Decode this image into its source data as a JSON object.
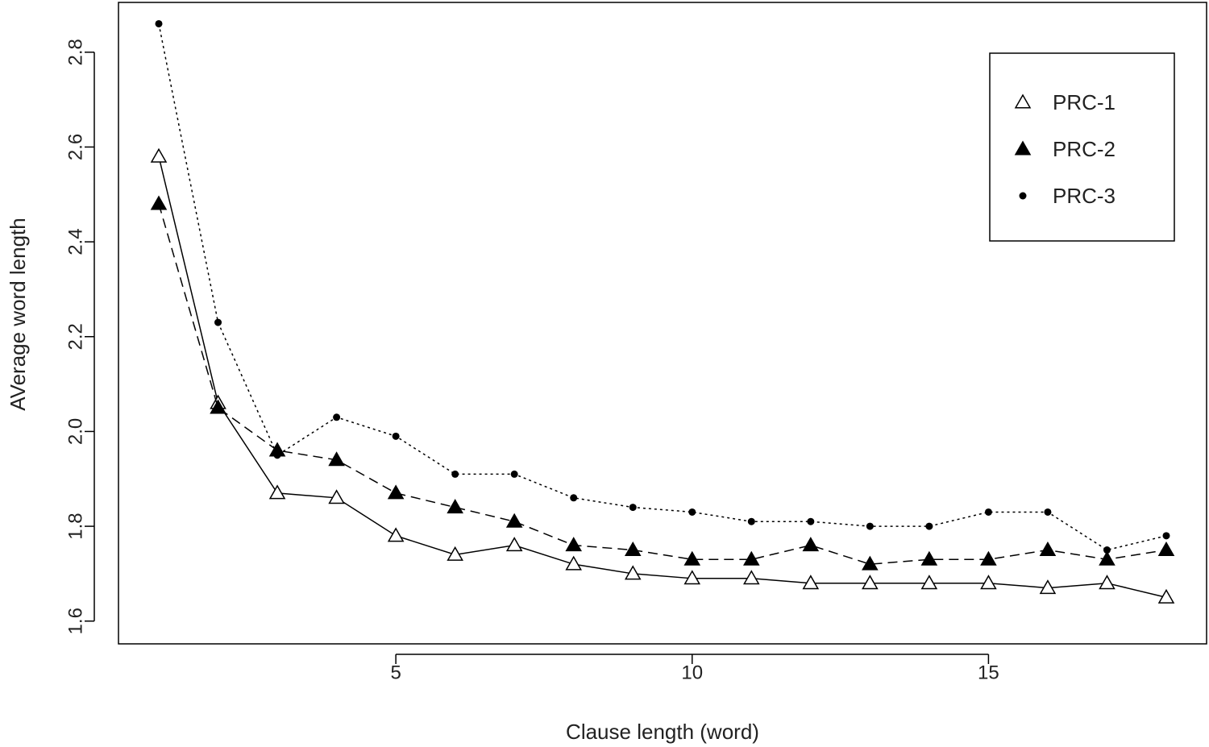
{
  "chart_data": {
    "type": "line",
    "x_label": "Clause length (word)",
    "y_label": "AVerage word length",
    "x": [
      1,
      2,
      3,
      4,
      5,
      6,
      7,
      8,
      9,
      10,
      11,
      12,
      13,
      14,
      15,
      16,
      17,
      18
    ],
    "series": [
      {
        "name": "PRC-1",
        "color": "#000000",
        "marker": "open-triangle",
        "dash": "solid",
        "values": [
          2.58,
          2.06,
          1.87,
          1.86,
          1.78,
          1.74,
          1.76,
          1.72,
          1.7,
          1.69,
          1.69,
          1.68,
          1.68,
          1.68,
          1.68,
          1.67,
          1.68,
          1.65
        ]
      },
      {
        "name": "PRC-2",
        "color": "#000000",
        "marker": "filled-triangle",
        "dash": "dashed",
        "values": [
          2.48,
          2.05,
          1.96,
          1.94,
          1.87,
          1.84,
          1.81,
          1.76,
          1.75,
          1.73,
          1.73,
          1.76,
          1.72,
          1.73,
          1.73,
          1.75,
          1.73,
          1.75
        ]
      },
      {
        "name": "PRC-3",
        "color": "#000000",
        "marker": "dot",
        "dash": "dotted",
        "values": [
          2.86,
          2.23,
          1.95,
          2.03,
          1.99,
          1.91,
          1.91,
          1.86,
          1.84,
          1.83,
          1.81,
          1.81,
          1.8,
          1.8,
          1.83,
          1.83,
          1.75,
          1.78
        ]
      }
    ],
    "xlim": [
      0.32,
      18.68
    ],
    "ylim": [
      1.552,
      2.905
    ],
    "xticks": [
      5,
      10,
      15
    ],
    "yticks": [
      1.6,
      1.8,
      {
        "value": 2,
        "label": "2.0"
      },
      2.2,
      2.4,
      2.6,
      2.8
    ],
    "legend": "topright"
  }
}
